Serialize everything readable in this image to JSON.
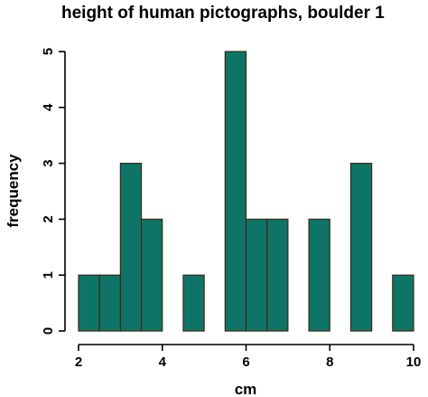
{
  "chart_data": {
    "type": "bar",
    "title": "height of human pictographs, boulder 1",
    "xlabel": "cm",
    "ylabel": "frequency",
    "bin_width": 0.5,
    "bin_starts": [
      2.0,
      2.5,
      3.0,
      3.5,
      4.0,
      4.5,
      5.0,
      5.5,
      6.0,
      6.5,
      7.0,
      7.5,
      8.0,
      8.5,
      9.0,
      9.5
    ],
    "values": [
      1,
      1,
      3,
      2,
      0,
      1,
      0,
      5,
      2,
      2,
      0,
      2,
      0,
      3,
      0,
      1
    ],
    "xlim": [
      2,
      10
    ],
    "ylim": [
      0,
      5
    ],
    "x_ticks": [
      "2",
      "4",
      "6",
      "8",
      "10"
    ],
    "y_ticks": [
      "0",
      "1",
      "2",
      "3",
      "4",
      "5"
    ],
    "bar_color": "#0e7468",
    "grid": false,
    "legend": "none"
  }
}
